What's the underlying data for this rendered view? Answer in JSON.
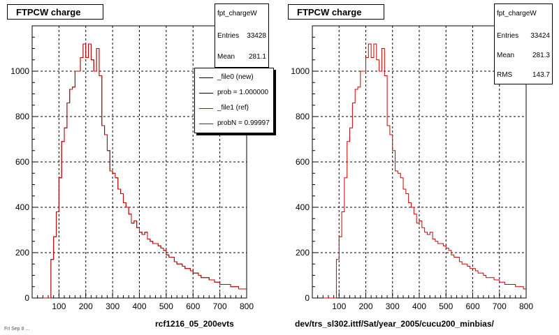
{
  "chart_data": [
    {
      "type": "histogram",
      "title": "FTPCW charge",
      "xlim": [
        0,
        800
      ],
      "ylim": [
        0,
        1200
      ],
      "x_ticks": [
        100,
        200,
        300,
        400,
        500,
        600,
        700,
        800
      ],
      "y_ticks": [
        0,
        200,
        400,
        600,
        800,
        1000
      ],
      "grid": true,
      "bin_width": 10,
      "x_start": 40,
      "series": [
        {
          "color": "#000000",
          "values": [
            0,
            0,
            0,
            170,
            270,
            380,
            530,
            690,
            750,
            860,
            920,
            930,
            1000,
            1000,
            1060,
            1120,
            1060,
            1120,
            1050,
            1000,
            1100,
            980,
            760,
            720,
            650,
            560,
            550,
            530,
            480,
            460,
            420,
            400,
            370,
            330,
            340,
            310,
            290,
            280,
            290,
            260,
            250,
            240,
            240,
            230,
            220,
            210,
            190,
            180,
            180,
            160,
            150,
            150,
            140,
            130,
            130,
            120,
            110,
            110,
            100,
            90,
            90,
            90,
            80,
            80,
            70,
            70,
            60,
            60,
            60,
            60,
            50,
            50,
            50,
            40,
            40,
            40
          ]
        },
        {
          "color": "#cc0000",
          "values": [
            0,
            0,
            0,
            170,
            270,
            380,
            530,
            690,
            750,
            860,
            920,
            930,
            1000,
            1000,
            1060,
            1120,
            1060,
            1120,
            1050,
            1000,
            1100,
            980,
            760,
            720,
            650,
            560,
            550,
            530,
            480,
            460,
            420,
            400,
            370,
            330,
            340,
            310,
            290,
            280,
            290,
            260,
            250,
            240,
            240,
            230,
            220,
            210,
            190,
            180,
            180,
            160,
            150,
            150,
            140,
            130,
            130,
            120,
            110,
            110,
            100,
            90,
            90,
            90,
            80,
            80,
            70,
            70,
            60,
            60,
            60,
            60,
            50,
            50,
            50,
            40,
            40,
            40
          ]
        }
      ],
      "stats": {
        "name": "fpt_chargeW",
        "rows": [
          {
            "label": "Entries",
            "value": "33428"
          },
          {
            "label": "Mean",
            "value": "281.1"
          }
        ]
      },
      "legend": {
        "entries": [
          {
            "label": "_file0 (new)",
            "color": "#000000"
          },
          {
            "label": "prob = 1.000000",
            "color": "#000000"
          },
          {
            "label": "_file1 (ref)",
            "color": "#cc0000"
          },
          {
            "label": "probN = 0.99997",
            "color": "#cc0000"
          }
        ]
      },
      "caption": "rcf1216_05_200evts"
    },
    {
      "type": "histogram",
      "title": "FTPCW charge",
      "xlim": [
        0,
        800
      ],
      "ylim": [
        0,
        1200
      ],
      "x_ticks": [
        100,
        200,
        300,
        400,
        500,
        600,
        700,
        800
      ],
      "y_ticks": [
        0,
        200,
        400,
        600,
        800,
        1000
      ],
      "grid": true,
      "bin_width": 10,
      "x_start": 40,
      "series": [
        {
          "color": "#cc0000",
          "values": [
            0,
            0,
            0,
            0,
            0,
            170,
            270,
            380,
            530,
            690,
            750,
            860,
            920,
            930,
            1000,
            1000,
            1060,
            1120,
            1060,
            1120,
            1050,
            1000,
            1100,
            980,
            760,
            720,
            650,
            560,
            550,
            530,
            480,
            460,
            420,
            400,
            370,
            330,
            340,
            310,
            290,
            280,
            290,
            260,
            250,
            240,
            240,
            230,
            220,
            210,
            190,
            180,
            180,
            160,
            150,
            150,
            140,
            130,
            130,
            120,
            110,
            110,
            100,
            90,
            90,
            90,
            80,
            80,
            70,
            70,
            60,
            60,
            60,
            60,
            50,
            50,
            50,
            40
          ]
        }
      ],
      "stats": {
        "name": "fpt_chargeW",
        "rows": [
          {
            "label": "Entries",
            "value": "33424"
          },
          {
            "label": "Mean",
            "value": "281.3"
          },
          {
            "label": "RMS",
            "value": "143.7"
          }
        ]
      },
      "caption": "dev/trs_sl302.ittf/Sat/year_2005/cucu200_minbias/"
    }
  ],
  "footer_stamp": "Fri Sep 8 ..."
}
